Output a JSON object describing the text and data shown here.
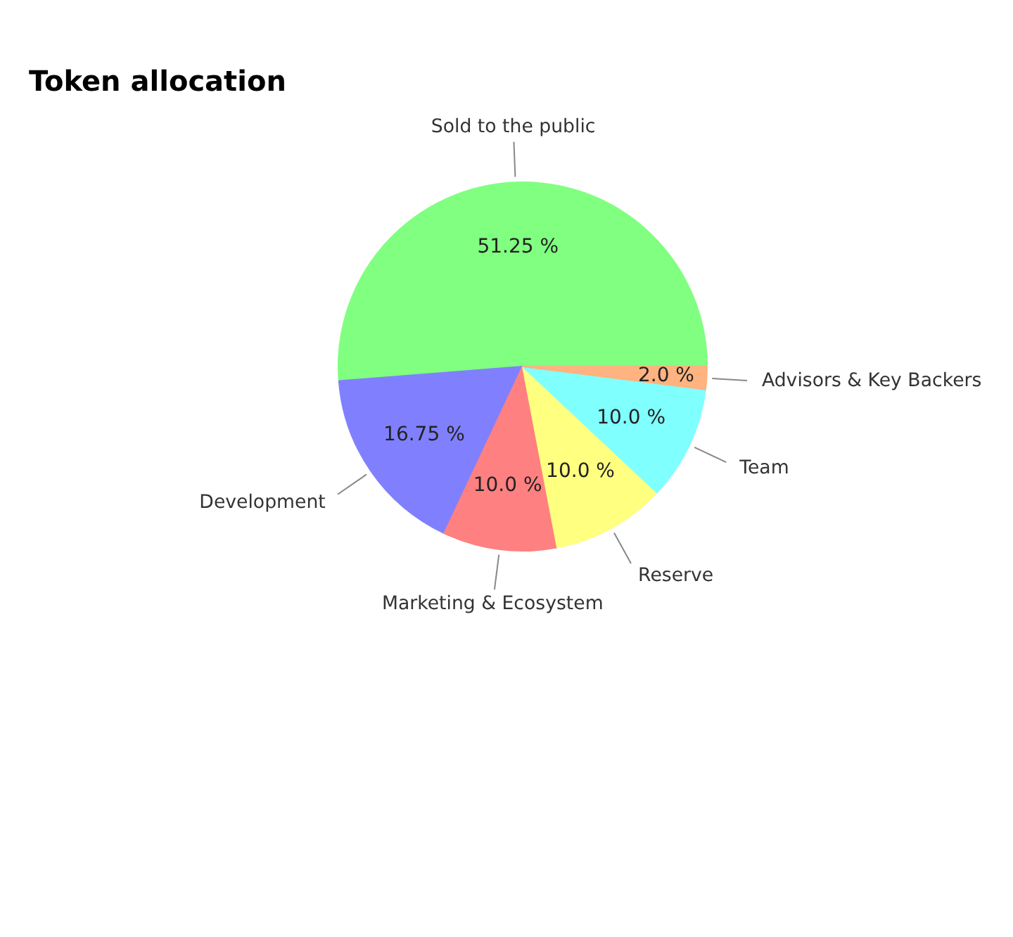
{
  "chart_data": {
    "type": "pie",
    "title": "Token allocation",
    "categories": [
      "Sold to the public",
      "Development",
      "Marketing & Ecosystem",
      "Reserve",
      "Team",
      "Advisors & Key Backers"
    ],
    "values": [
      51.25,
      16.75,
      10.0,
      10.0,
      10.0,
      2.0
    ],
    "value_labels": [
      "51.25 %",
      "16.75 %",
      "10.0 %",
      "10.0 %",
      "10.0 %",
      "2.0 %"
    ],
    "colors": [
      "#80ff80",
      "#8080ff",
      "#ff8080",
      "#ffff80",
      "#80ffff",
      "#ffb380"
    ]
  }
}
